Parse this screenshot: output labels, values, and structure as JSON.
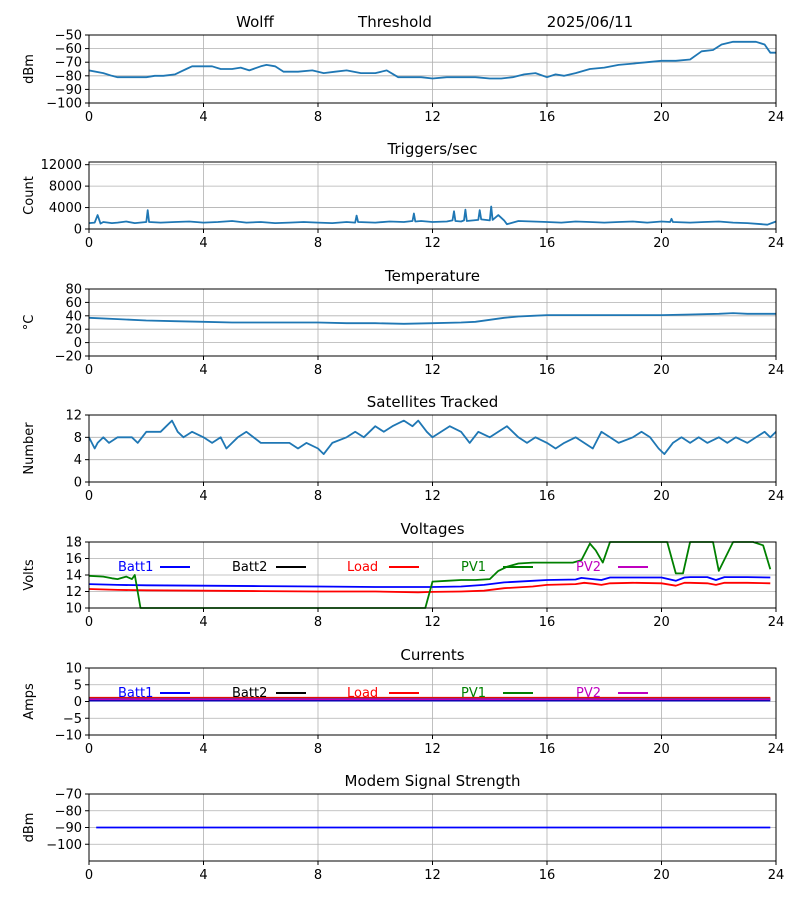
{
  "header": {
    "station": "Wolff",
    "plot_title": "Threshold",
    "date": "2025/06/11"
  },
  "colors": {
    "series": "#1f77b4",
    "grid": "#b0b0b0",
    "batt1": "#0000ff",
    "batt2": "#000000",
    "load": "#ff0000",
    "pv1": "#008000",
    "pv2": "#bf00bf"
  },
  "chart_data": [
    {
      "id": "threshold",
      "type": "line",
      "title": "",
      "xlabel": "",
      "ylabel": "dBm",
      "xlim": [
        0,
        24
      ],
      "ylim": [
        -100,
        -50
      ],
      "xticks": [
        "0",
        "4",
        "8",
        "12",
        "16",
        "20",
        "24"
      ],
      "yticks": [
        "−100",
        "−90",
        "−80",
        "−70",
        "−60",
        "−50"
      ],
      "grid": true,
      "series": [
        {
          "color_key": "series",
          "x": [
            0,
            0.5,
            0.8,
            1,
            2,
            2.3,
            2.6,
            3,
            3.2,
            3.4,
            3.6,
            4,
            4.3,
            4.6,
            5,
            5.3,
            5.6,
            6,
            6.2,
            6.5,
            6.8,
            7.3,
            7.8,
            8.2,
            8.6,
            9,
            9.5,
            10,
            10.4,
            10.8,
            11.2,
            11.6,
            12,
            12.5,
            13,
            13.5,
            14,
            14.4,
            14.8,
            15.2,
            15.6,
            16,
            16.3,
            16.6,
            17,
            17.5,
            18,
            18.5,
            19,
            19.5,
            20,
            20.5,
            21,
            21.4,
            21.8,
            22.1,
            22.5,
            23,
            23.3,
            23.6,
            23.8,
            24
          ],
          "y": [
            -76,
            -78,
            -80,
            -81,
            -81,
            -80,
            -80,
            -79,
            -77,
            -75,
            -73,
            -73,
            -73,
            -75,
            -75,
            -74,
            -76,
            -73,
            -72,
            -73,
            -77,
            -77,
            -76,
            -78,
            -77,
            -76,
            -78,
            -78,
            -76,
            -81,
            -81,
            -81,
            -82,
            -81,
            -81,
            -81,
            -82,
            -82,
            -81,
            -79,
            -78,
            -81,
            -79,
            -80,
            -78,
            -75,
            -74,
            -72,
            -71,
            -70,
            -69,
            -69,
            -68,
            -62,
            -61,
            -57,
            -55,
            -55,
            -55,
            -57,
            -63,
            -63
          ]
        }
      ]
    },
    {
      "id": "triggers",
      "type": "line",
      "title": "Triggers/sec",
      "xlabel": "",
      "ylabel": "Count",
      "xlim": [
        0,
        24
      ],
      "ylim": [
        0,
        12500
      ],
      "xticks": [
        "0",
        "4",
        "8",
        "12",
        "16",
        "20",
        "24"
      ],
      "yticks": [
        "0",
        "4000",
        "8000",
        "12000"
      ],
      "ytick_values": [
        0,
        4000,
        8000,
        12000
      ],
      "grid": true,
      "series": [
        {
          "color_key": "series",
          "x": [
            0,
            0.2,
            0.3,
            0.4,
            0.5,
            0.8,
            1,
            1.3,
            1.6,
            2,
            2.05,
            2.1,
            2.5,
            3,
            3.5,
            4,
            4.5,
            5,
            5.5,
            6,
            6.5,
            7,
            7.5,
            8,
            8.5,
            9,
            9.3,
            9.35,
            9.4,
            10,
            10.5,
            11,
            11.3,
            11.35,
            11.4,
            11.6,
            12,
            12.5,
            12.7,
            12.75,
            12.8,
            13,
            13.1,
            13.15,
            13.2,
            13.6,
            13.65,
            13.7,
            14,
            14.05,
            14.1,
            14.3,
            14.5,
            14.6,
            15,
            15.5,
            16,
            16.5,
            17,
            17.5,
            18,
            18.5,
            19,
            19.5,
            20,
            20.3,
            20.35,
            20.4,
            21,
            21.5,
            22,
            22.5,
            23,
            23.5,
            23.7,
            24
          ],
          "y": [
            1100,
            1200,
            2600,
            1000,
            1300,
            1100,
            1200,
            1400,
            1100,
            1300,
            3500,
            1300,
            1200,
            1300,
            1400,
            1200,
            1300,
            1500,
            1200,
            1300,
            1100,
            1200,
            1300,
            1200,
            1100,
            1300,
            1200,
            2500,
            1300,
            1200,
            1400,
            1300,
            1500,
            2900,
            1400,
            1500,
            1300,
            1400,
            1600,
            3300,
            1500,
            1400,
            1600,
            3600,
            1500,
            1700,
            3500,
            1800,
            1600,
            4200,
            1700,
            2600,
            1600,
            900,
            1500,
            1400,
            1300,
            1200,
            1400,
            1300,
            1200,
            1300,
            1400,
            1200,
            1400,
            1300,
            1900,
            1300,
            1200,
            1300,
            1400,
            1200,
            1100,
            900,
            800,
            1400
          ]
        }
      ]
    },
    {
      "id": "temperature",
      "type": "line",
      "title": "Temperature",
      "xlabel": "",
      "ylabel": "°C",
      "xlim": [
        0,
        24
      ],
      "ylim": [
        -20,
        80
      ],
      "xticks": [
        "0",
        "4",
        "8",
        "12",
        "16",
        "20",
        "24"
      ],
      "yticks": [
        "−20",
        "0",
        "20",
        "40",
        "60",
        "80"
      ],
      "grid": true,
      "series": [
        {
          "color_key": "series",
          "x": [
            0,
            1,
            2,
            3,
            4,
            5,
            6,
            7,
            8,
            9,
            10,
            11,
            12,
            13,
            13.5,
            14,
            14.5,
            15,
            15.5,
            16,
            17,
            18,
            19,
            20,
            21,
            22,
            22.5,
            23,
            24
          ],
          "y": [
            37,
            35,
            33,
            32,
            31,
            30,
            30,
            30,
            30,
            29,
            29,
            28,
            29,
            30,
            31,
            34,
            37,
            39,
            40,
            41,
            41,
            41,
            41,
            41,
            42,
            43,
            44,
            43,
            43
          ]
        }
      ]
    },
    {
      "id": "satellites",
      "type": "line",
      "title": "Satellites Tracked",
      "xlabel": "",
      "ylabel": "Number",
      "xlim": [
        0,
        24
      ],
      "ylim": [
        0,
        12
      ],
      "xticks": [
        "0",
        "4",
        "8",
        "12",
        "16",
        "20",
        "24"
      ],
      "yticks": [
        "0",
        "4",
        "8",
        "12"
      ],
      "grid": true,
      "series": [
        {
          "color_key": "series",
          "x": [
            0,
            0.2,
            0.3,
            0.5,
            0.7,
            1,
            1.5,
            1.7,
            2,
            2.5,
            2.7,
            2.9,
            3.1,
            3.3,
            3.6,
            4,
            4.3,
            4.6,
            4.8,
            5,
            5.2,
            5.5,
            6,
            6.5,
            7,
            7.3,
            7.6,
            8,
            8.2,
            8.5,
            9,
            9.3,
            9.6,
            10,
            10.3,
            10.6,
            11,
            11.3,
            11.5,
            11.8,
            12,
            12.3,
            12.6,
            13,
            13.3,
            13.6,
            14,
            14.3,
            14.6,
            15,
            15.3,
            15.6,
            16,
            16.3,
            16.6,
            17,
            17.3,
            17.6,
            17.9,
            18.2,
            18.5,
            19,
            19.3,
            19.6,
            19.9,
            20.1,
            20.4,
            20.7,
            21,
            21.3,
            21.6,
            22,
            22.3,
            22.6,
            23,
            23.3,
            23.6,
            23.8,
            24
          ],
          "y": [
            8,
            6,
            7,
            8,
            7,
            8,
            8,
            7,
            9,
            9,
            10,
            11,
            9,
            8,
            9,
            8,
            7,
            8,
            6,
            7,
            8,
            9,
            7,
            7,
            7,
            6,
            7,
            6,
            5,
            7,
            8,
            9,
            8,
            10,
            9,
            10,
            11,
            10,
            11,
            9,
            8,
            9,
            10,
            9,
            7,
            9,
            8,
            9,
            10,
            8,
            7,
            8,
            7,
            6,
            7,
            8,
            7,
            6,
            9,
            8,
            7,
            8,
            9,
            8,
            6,
            5,
            7,
            8,
            7,
            8,
            7,
            8,
            7,
            8,
            7,
            8,
            9,
            8,
            9
          ]
        }
      ]
    },
    {
      "id": "voltages",
      "type": "line",
      "title": "Voltages",
      "xlabel": "",
      "ylabel": "Volts",
      "xlim": [
        0,
        24
      ],
      "ylim": [
        10,
        18
      ],
      "xticks": [
        "0",
        "4",
        "8",
        "12",
        "16",
        "20",
        "24"
      ],
      "yticks": [
        "10",
        "12",
        "14",
        "16",
        "18"
      ],
      "grid": true,
      "legend": [
        "Batt1",
        "Batt2",
        "Load",
        "PV1",
        "PV2"
      ],
      "series": [
        {
          "name": "Batt1",
          "color_key": "batt1",
          "x": [
            0,
            1,
            2,
            4,
            6,
            8,
            10,
            12,
            13,
            13.8,
            14.5,
            15.5,
            16,
            17,
            17.2,
            17.6,
            17.9,
            18.2,
            19,
            20,
            20.5,
            20.8,
            21,
            21.6,
            21.9,
            22.2,
            23,
            23.8
          ],
          "y": [
            12.9,
            12.8,
            12.75,
            12.7,
            12.65,
            12.6,
            12.55,
            12.55,
            12.6,
            12.8,
            13.1,
            13.3,
            13.4,
            13.45,
            13.65,
            13.5,
            13.4,
            13.7,
            13.7,
            13.7,
            13.3,
            13.7,
            13.75,
            13.75,
            13.4,
            13.75,
            13.75,
            13.7
          ]
        },
        {
          "name": "Load",
          "color_key": "load",
          "x": [
            0,
            1,
            2,
            4,
            6,
            8,
            10,
            11.5,
            12,
            13,
            13.8,
            14.5,
            15.5,
            16,
            17,
            17.3,
            17.6,
            17.9,
            18.2,
            19,
            20,
            20.5,
            20.8,
            21,
            21.6,
            21.9,
            22.2,
            23,
            23.8
          ],
          "y": [
            12.3,
            12.2,
            12.15,
            12.1,
            12.05,
            12.0,
            12.0,
            11.9,
            11.95,
            12.0,
            12.1,
            12.4,
            12.6,
            12.8,
            12.9,
            13.05,
            12.95,
            12.8,
            13.0,
            13.05,
            13.0,
            12.7,
            13.05,
            13.05,
            13.0,
            12.8,
            13.05,
            13.05,
            13.0
          ]
        },
        {
          "name": "PV1",
          "color_key": "pv1",
          "x": [
            0,
            0.5,
            0.8,
            1,
            1.1,
            1.3,
            1.5,
            1.6,
            1.8,
            11.75,
            12,
            12.5,
            13,
            13.5,
            14,
            14.3,
            14.6,
            15,
            15.5,
            16,
            16.5,
            16.9,
            17.2,
            17.5,
            17.7,
            17.95,
            18.2,
            19,
            19.7,
            19.95,
            20.2,
            20.5,
            20.75,
            21,
            21.5,
            21.65,
            21.8,
            22,
            22.5,
            22.7,
            22.9,
            23.2,
            23.55,
            23.8
          ],
          "y": [
            13.9,
            13.8,
            13.6,
            13.5,
            13.6,
            13.8,
            13.5,
            14.0,
            10.0,
            10.0,
            13.2,
            13.3,
            13.4,
            13.4,
            13.5,
            14.5,
            15.0,
            15.4,
            15.5,
            15.5,
            15.5,
            15.5,
            15.8,
            17.8,
            17.0,
            15.5,
            18.0,
            18.0,
            18.0,
            18.0,
            18.0,
            14.2,
            14.2,
            18.0,
            18.0,
            18.0,
            18.0,
            14.5,
            18.0,
            18.0,
            18.0,
            18.0,
            17.6,
            14.7
          ]
        }
      ]
    },
    {
      "id": "currents",
      "type": "line",
      "title": "Currents",
      "xlabel": "",
      "ylabel": "Amps",
      "xlim": [
        0,
        24
      ],
      "ylim": [
        -10,
        10
      ],
      "xticks": [
        "0",
        "4",
        "8",
        "12",
        "16",
        "20",
        "24"
      ],
      "yticks": [
        "−10",
        "−5",
        "0",
        "5",
        "10"
      ],
      "grid": true,
      "legend": [
        "Batt1",
        "Batt2",
        "Load",
        "PV1",
        "PV2"
      ],
      "series": [
        {
          "name": "Batt1",
          "color_key": "batt1",
          "x": [
            0,
            6,
            12,
            18,
            23.8
          ],
          "y": [
            0.3,
            0.3,
            0.3,
            0.3,
            0.3
          ]
        },
        {
          "name": "Batt2",
          "color_key": "batt2",
          "x": [
            0,
            6,
            12,
            18,
            23.8
          ],
          "y": [
            0.6,
            0.6,
            0.6,
            0.6,
            0.6
          ]
        },
        {
          "name": "Load",
          "color_key": "load",
          "x": [
            0,
            6,
            12,
            18,
            23.8
          ],
          "y": [
            1.1,
            1.1,
            1.1,
            1.1,
            1.1
          ]
        },
        {
          "name": "PV1",
          "color_key": "pv1",
          "x": [
            0,
            6,
            12,
            18,
            23.8
          ],
          "y": [
            0.8,
            0.8,
            0.8,
            0.8,
            0.8
          ]
        },
        {
          "name": "PV2",
          "color_key": "pv2",
          "x": [
            0,
            6,
            12,
            18,
            23.8
          ],
          "y": [
            0.7,
            0.7,
            0.7,
            0.7,
            0.7
          ]
        }
      ]
    },
    {
      "id": "modem",
      "type": "line",
      "title": "Modem Signal Strength",
      "xlabel": "",
      "ylabel": "dBm",
      "xlim": [
        0,
        24
      ],
      "ylim": [
        -110,
        -70
      ],
      "xticks": [
        "0",
        "4",
        "8",
        "12",
        "16",
        "20",
        "24"
      ],
      "yticks": [
        "−100",
        "−90",
        "−80",
        "−70"
      ],
      "ytick_values": [
        -100,
        -90,
        -80,
        -70
      ],
      "grid": true,
      "series": [
        {
          "color_key": "batt1",
          "x": [
            0.25,
            23.8
          ],
          "y": [
            -90,
            -90
          ]
        }
      ]
    }
  ]
}
